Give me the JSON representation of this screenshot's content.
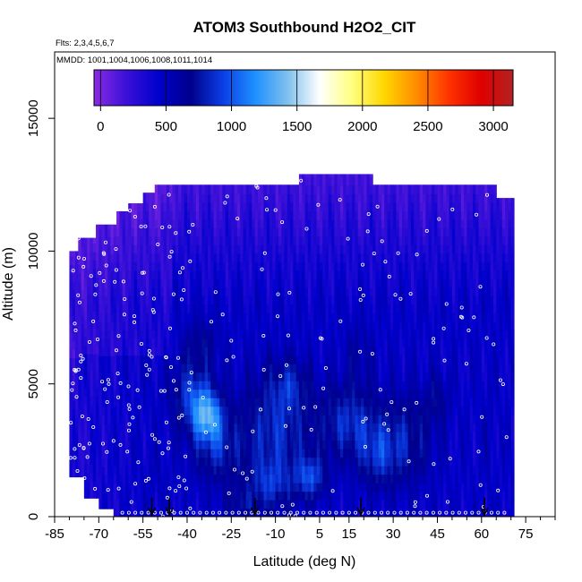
{
  "chart_data": {
    "type": "heatmap",
    "title": "ATOM3 Southbound H2O2_CIT",
    "flights_label": "Flts: 2,3,4,5,6,7",
    "dates_label": "MMDD: 1001,1004,1006,1008,1011,1014",
    "xlabel": "Latitude (deg N)",
    "ylabel": "Altitude (m)",
    "xlim": [
      -85,
      85
    ],
    "ylim": [
      0,
      17500
    ],
    "x_ticks": [
      "-85",
      "-70",
      "-55",
      "-40",
      "-25",
      "-10",
      "5",
      "15",
      "30",
      "45",
      "60",
      "75"
    ],
    "x_tick_values": [
      -85,
      -70,
      -55,
      -40,
      -25,
      -10,
      5,
      15,
      30,
      45,
      60,
      75
    ],
    "x_minor_ticks": [
      -80,
      -75,
      -65,
      -60,
      -50,
      -45,
      -35,
      -30,
      -20,
      -15,
      -5,
      0,
      10,
      20,
      25,
      35,
      40,
      50,
      55,
      65,
      70,
      80,
      85
    ],
    "y_ticks": [
      "0",
      "5000",
      "10000",
      "15000"
    ],
    "y_tick_values": [
      0,
      5000,
      10000,
      15000
    ],
    "colorbar": {
      "range": [
        -50,
        3150
      ],
      "ticks": [
        "0",
        "500",
        "1000",
        "1500",
        "2000",
        "2500",
        "3000"
      ],
      "tick_values": [
        0,
        500,
        1000,
        1500,
        2000,
        2500,
        3000
      ],
      "colors": [
        "#8a2be2",
        "#3b10d8",
        "#0000cd",
        "#00008b",
        "#0b3ee6",
        "#1e90ff",
        "#7ec0ee",
        "#ffffff",
        "#ffff80",
        "#ffd700",
        "#ff8c00",
        "#ff3300",
        "#e00000",
        "#b22222"
      ]
    },
    "location_arrows_lat": [
      -52,
      -46,
      -17,
      19,
      61
    ],
    "data_region": {
      "lat_min": -80,
      "lat_max": 71,
      "alt_min": 0,
      "alt_max": 12900
    },
    "field_blobs": [
      {
        "lat": -38,
        "alt": 4600,
        "rlat": 7,
        "ralt": 1300,
        "value": 900
      },
      {
        "lat": -33,
        "alt": 3800,
        "rlat": 5,
        "ralt": 900,
        "value": 1100
      },
      {
        "lat": -30,
        "alt": 2600,
        "rlat": 8,
        "ralt": 1300,
        "value": 800
      },
      {
        "lat": -35,
        "alt": 6600,
        "rlat": 6,
        "ralt": 900,
        "value": 650
      },
      {
        "lat": -10,
        "alt": 3300,
        "rlat": 12,
        "ralt": 2200,
        "value": 850
      },
      {
        "lat": -5,
        "alt": 5000,
        "rlat": 6,
        "ralt": 900,
        "value": 700
      },
      {
        "lat": -12,
        "alt": 1200,
        "rlat": 8,
        "ralt": 900,
        "value": 750
      },
      {
        "lat": 2,
        "alt": 1500,
        "rlat": 5,
        "ralt": 800,
        "value": 900
      },
      {
        "lat": 15,
        "alt": 3600,
        "rlat": 10,
        "ralt": 1400,
        "value": 850
      },
      {
        "lat": 25,
        "alt": 2300,
        "rlat": 7,
        "ralt": 1200,
        "value": 800
      },
      {
        "lat": 18,
        "alt": 6200,
        "rlat": 5,
        "ralt": 1200,
        "value": 600
      },
      {
        "lat": 35,
        "alt": 3000,
        "rlat": 9,
        "ralt": 1700,
        "value": 750
      },
      {
        "lat": 45,
        "alt": 4500,
        "rlat": 4,
        "ralt": 900,
        "value": 650
      },
      {
        "lat": -50,
        "alt": 1500,
        "rlat": 4,
        "ralt": 1100,
        "value": 500
      },
      {
        "lat": -22,
        "alt": 500,
        "rlat": 6,
        "ralt": 500,
        "value": 650
      },
      {
        "lat": 62,
        "alt": 3300,
        "rlat": 3,
        "ralt": 2000,
        "value": 500
      }
    ]
  }
}
